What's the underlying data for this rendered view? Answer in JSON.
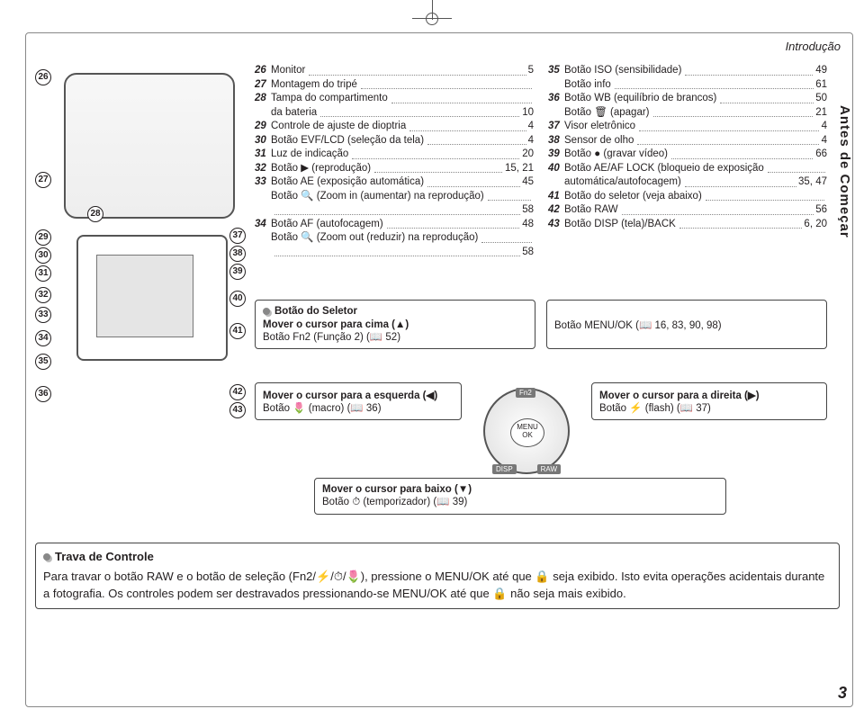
{
  "section_title": "Introdução",
  "side_label": "Antes de Começar",
  "page_number": "3",
  "callouts_top": [
    "26",
    "27",
    "28",
    "29",
    "30",
    "31",
    "32",
    "33",
    "34",
    "35",
    "36"
  ],
  "callouts_right": [
    "37",
    "38",
    "39",
    "40",
    "41",
    "42",
    "43"
  ],
  "col1": [
    {
      "n": "26",
      "t": "Monitor",
      "p": " 5"
    },
    {
      "n": "27",
      "t": "Montagem do tripé",
      "p": ""
    },
    {
      "n": "28",
      "t": "Tampa do compartimento",
      "p": ""
    },
    {
      "n": "",
      "t": "da bateria",
      "p": "10"
    },
    {
      "n": "29",
      "t": "Controle de ajuste de dioptria",
      "p": " 4"
    },
    {
      "n": "30",
      "t": "Botão EVF/LCD (seleção da tela)",
      "p": " 4"
    },
    {
      "n": "31",
      "t": "Luz de indicação",
      "p": "20"
    },
    {
      "n": "32",
      "t": "Botão ▶ (reprodução)",
      "p": " 15, 21"
    },
    {
      "n": "33",
      "t": "Botão AE (exposição automática)",
      "p": "45"
    },
    {
      "n": "",
      "t": "Botão 🔍 (Zoom in (aumentar) na reprodução)",
      "p": ""
    },
    {
      "n": "",
      "t": "",
      "p": "58"
    },
    {
      "n": "34",
      "t": "Botão AF (autofocagem)",
      "p": "48"
    },
    {
      "n": "",
      "t": "Botão 🔍 (Zoom out (reduzir) na reprodução)",
      "p": ""
    },
    {
      "n": "",
      "t": "",
      "p": "58"
    }
  ],
  "col2": [
    {
      "n": "35",
      "t": "Botão ISO (sensibilidade)",
      "p": "49"
    },
    {
      "n": "",
      "t": "Botão info",
      "p": "61"
    },
    {
      "n": "36",
      "t": "Botão WB (equilíbrio de brancos)",
      "p": "50"
    },
    {
      "n": "",
      "t": "Botão 🗑 (apagar)",
      "p": "21"
    },
    {
      "n": "37",
      "t": "Visor eletrônico",
      "p": " 4"
    },
    {
      "n": "38",
      "t": "Sensor de olho",
      "p": " 4"
    },
    {
      "n": "39",
      "t": "Botão ● (gravar vídeo)",
      "p": "66"
    },
    {
      "n": "40",
      "t": "Botão AE/AF LOCK (bloqueio de exposição",
      "p": ""
    },
    {
      "n": "",
      "t": "automática/autofocagem)",
      "p": "35, 47"
    },
    {
      "n": "41",
      "t": "Botão do seletor (veja abaixo)",
      "p": ""
    },
    {
      "n": "42",
      "t": "Botão RAW",
      "p": "56"
    },
    {
      "n": "43",
      "t": "Botão DISP (tela)/BACK",
      "p": "6, 20"
    }
  ],
  "selector_title": "Botão do Seletor",
  "sel_up_1": "Mover o cursor para cima (▲)",
  "sel_up_2": "Botão Fn2 (Função 2) (📖 52)",
  "sel_right_menu": "Botão MENU/OK (📖 16, 83, 90, 98)",
  "sel_left_1": "Mover o cursor para a esquerda (◀)",
  "sel_left_2": "Botão 🌷 (macro) (📖 36)",
  "sel_right_1": "Mover o cursor para a direita (▶)",
  "sel_right_2": "Botão ⚡ (flash) (📖 37)",
  "sel_down_1": "Mover o cursor para baixo (▼)",
  "sel_down_2": "Botão ⏱ (temporizador) (📖 39)",
  "dial_ok": "MENU OK",
  "dial_top": "Fn2",
  "dial_bottom_l": "DISP",
  "dial_bottom_r": "RAW",
  "trava_title": "Trava de Controle",
  "trava_body": "Para travar o botão RAW e o botão de seleção (Fn2/⚡/⏱/🌷), pressione o MENU/OK até que 🔒 seja exibido. Isto evita operações acidentais durante a fotografia. Os controles podem ser destravados pressionando-se MENU/OK até que 🔒 não seja mais exibido."
}
